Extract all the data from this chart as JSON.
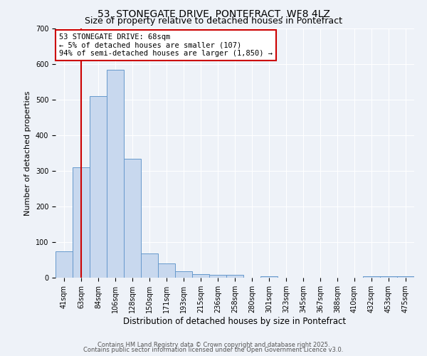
{
  "title": "53, STONEGATE DRIVE, PONTEFRACT, WF8 4LZ",
  "subtitle": "Size of property relative to detached houses in Pontefract",
  "bar_labels": [
    "41sqm",
    "63sqm",
    "84sqm",
    "106sqm",
    "128sqm",
    "150sqm",
    "171sqm",
    "193sqm",
    "215sqm",
    "236sqm",
    "258sqm",
    "280sqm",
    "301sqm",
    "323sqm",
    "345sqm",
    "367sqm",
    "388sqm",
    "410sqm",
    "432sqm",
    "453sqm",
    "475sqm"
  ],
  "bar_values": [
    75,
    310,
    510,
    585,
    335,
    68,
    40,
    18,
    10,
    8,
    8,
    0,
    5,
    0,
    0,
    0,
    0,
    0,
    5,
    5,
    5
  ],
  "bar_color": "#c8d8ee",
  "bar_edge_color": "#6699cc",
  "ylim": [
    0,
    700
  ],
  "ylabel": "Number of detached properties",
  "xlabel": "Distribution of detached houses by size in Pontefract",
  "vline_x": 1,
  "vline_color": "#cc0000",
  "annotation_title": "53 STONEGATE DRIVE: 68sqm",
  "annotation_line1": "← 5% of detached houses are smaller (107)",
  "annotation_line2": "94% of semi-detached houses are larger (1,850) →",
  "annotation_box_facecolor": "#ffffff",
  "annotation_box_edgecolor": "#cc0000",
  "footer1": "Contains HM Land Registry data © Crown copyright and database right 2025.",
  "footer2": "Contains public sector information licensed under the Open Government Licence v3.0.",
  "bg_color": "#eef2f8",
  "plot_bg_color": "#eef2f8",
  "grid_color": "#ffffff",
  "title_fontsize": 10,
  "subtitle_fontsize": 9,
  "xlabel_fontsize": 8.5,
  "ylabel_fontsize": 8,
  "tick_fontsize": 7,
  "annotation_fontsize": 7.5,
  "footer_fontsize": 6
}
